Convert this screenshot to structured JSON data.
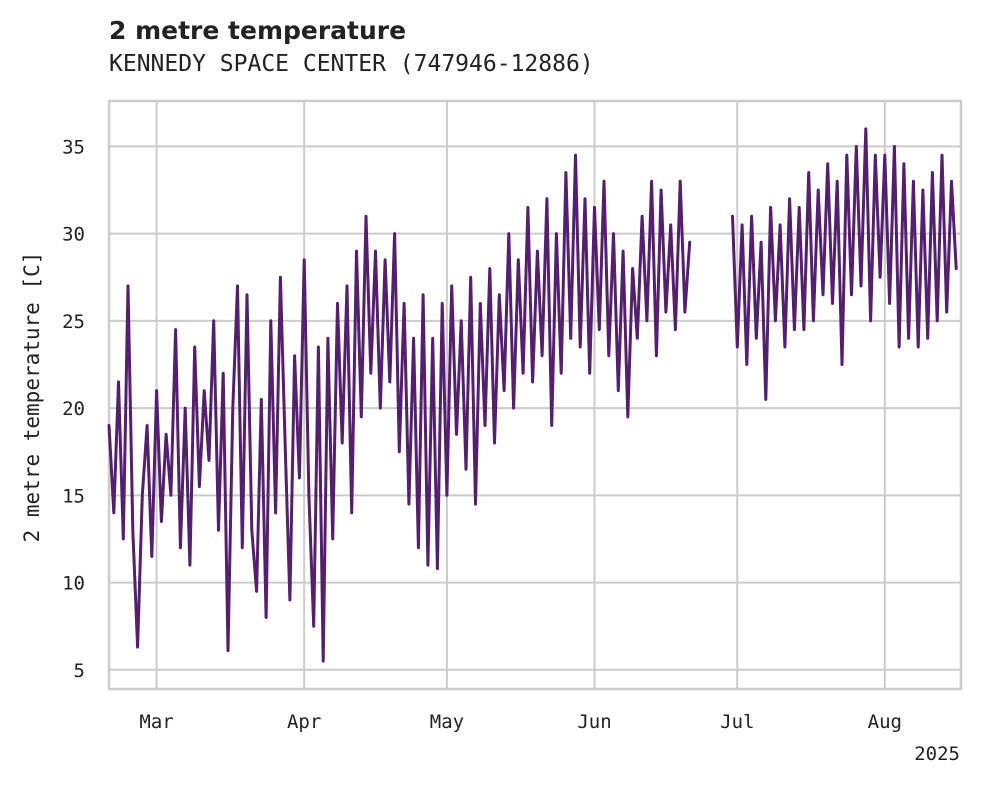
{
  "chart_data": {
    "type": "line",
    "title": "2 metre temperature",
    "subtitle": "KENNEDY SPACE CENTER (747946-12886)",
    "xlabel": "",
    "ylabel": "2 metre temperature [C]",
    "x_range": [
      "2025-02-19",
      "2025-08-17"
    ],
    "ylim": [
      3.9,
      37.6
    ],
    "x_ticks": [
      {
        "date": "2025-03-01",
        "label": "Mar"
      },
      {
        "date": "2025-04-01",
        "label": "Apr"
      },
      {
        "date": "2025-05-01",
        "label": "May"
      },
      {
        "date": "2025-06-01",
        "label": "Jun"
      },
      {
        "date": "2025-07-01",
        "label": "Jul"
      },
      {
        "date": "2025-08-01",
        "label": "Aug"
      }
    ],
    "x_offset_label": "2025",
    "y_ticks": [
      5,
      10,
      15,
      20,
      25,
      30,
      35
    ],
    "grid": true,
    "series": [
      {
        "color": "#541f6e",
        "points": [
          [
            "2025-02-19",
            19.0
          ],
          [
            "2025-02-20",
            14.0
          ],
          [
            "2025-02-21",
            21.5
          ],
          [
            "2025-02-22",
            12.5
          ],
          [
            "2025-02-23",
            27.0
          ],
          [
            "2025-02-24",
            13.0
          ],
          [
            "2025-02-25",
            6.3
          ],
          [
            "2025-02-26",
            15.0
          ],
          [
            "2025-02-27",
            19.0
          ],
          [
            "2025-02-28",
            11.5
          ],
          [
            "2025-03-01",
            21.0
          ],
          [
            "2025-03-02",
            13.5
          ],
          [
            "2025-03-03",
            18.5
          ],
          [
            "2025-03-04",
            15.0
          ],
          [
            "2025-03-05",
            24.5
          ],
          [
            "2025-03-06",
            12.0
          ],
          [
            "2025-03-07",
            20.0
          ],
          [
            "2025-03-08",
            11.0
          ],
          [
            "2025-03-09",
            23.5
          ],
          [
            "2025-03-10",
            15.5
          ],
          [
            "2025-03-11",
            21.0
          ],
          [
            "2025-03-12",
            17.0
          ],
          [
            "2025-03-13",
            25.0
          ],
          [
            "2025-03-14",
            13.0
          ],
          [
            "2025-03-15",
            22.0
          ],
          [
            "2025-03-16",
            6.1
          ],
          [
            "2025-03-17",
            20.0
          ],
          [
            "2025-03-18",
            27.0
          ],
          [
            "2025-03-19",
            12.0
          ],
          [
            "2025-03-20",
            26.5
          ],
          [
            "2025-03-21",
            13.0
          ],
          [
            "2025-03-22",
            9.5
          ],
          [
            "2025-03-23",
            20.5
          ],
          [
            "2025-03-24",
            8.0
          ],
          [
            "2025-03-25",
            25.0
          ],
          [
            "2025-03-26",
            14.0
          ],
          [
            "2025-03-27",
            27.5
          ],
          [
            "2025-03-28",
            18.0
          ],
          [
            "2025-03-29",
            9.0
          ],
          [
            "2025-03-30",
            23.0
          ],
          [
            "2025-03-31",
            16.0
          ],
          [
            "2025-04-01",
            28.5
          ],
          [
            "2025-04-02",
            15.0
          ],
          [
            "2025-04-03",
            7.5
          ],
          [
            "2025-04-04",
            23.5
          ],
          [
            "2025-04-05",
            5.5
          ],
          [
            "2025-04-06",
            24.0
          ],
          [
            "2025-04-07",
            12.5
          ],
          [
            "2025-04-08",
            26.0
          ],
          [
            "2025-04-09",
            18.0
          ],
          [
            "2025-04-10",
            27.0
          ],
          [
            "2025-04-11",
            14.0
          ],
          [
            "2025-04-12",
            29.0
          ],
          [
            "2025-04-13",
            19.5
          ],
          [
            "2025-04-14",
            31.0
          ],
          [
            "2025-04-15",
            22.0
          ],
          [
            "2025-04-16",
            29.0
          ],
          [
            "2025-04-17",
            20.0
          ],
          [
            "2025-04-18",
            28.5
          ],
          [
            "2025-04-19",
            21.5
          ],
          [
            "2025-04-20",
            30.0
          ],
          [
            "2025-04-21",
            17.5
          ],
          [
            "2025-04-22",
            26.0
          ],
          [
            "2025-04-23",
            14.5
          ],
          [
            "2025-04-24",
            24.0
          ],
          [
            "2025-04-25",
            12.0
          ],
          [
            "2025-04-26",
            26.5
          ],
          [
            "2025-04-27",
            11.0
          ],
          [
            "2025-04-28",
            24.0
          ],
          [
            "2025-04-29",
            10.8
          ],
          [
            "2025-04-30",
            26.0
          ],
          [
            "2025-05-01",
            15.0
          ],
          [
            "2025-05-02",
            27.0
          ],
          [
            "2025-05-03",
            18.5
          ],
          [
            "2025-05-04",
            25.0
          ],
          [
            "2025-05-05",
            16.5
          ],
          [
            "2025-05-06",
            27.5
          ],
          [
            "2025-05-07",
            14.5
          ],
          [
            "2025-05-08",
            26.0
          ],
          [
            "2025-05-09",
            19.0
          ],
          [
            "2025-05-10",
            28.0
          ],
          [
            "2025-05-11",
            18.0
          ],
          [
            "2025-05-12",
            26.5
          ],
          [
            "2025-05-13",
            21.0
          ],
          [
            "2025-05-14",
            30.0
          ],
          [
            "2025-05-15",
            20.0
          ],
          [
            "2025-05-16",
            28.5
          ],
          [
            "2025-05-17",
            22.0
          ],
          [
            "2025-05-18",
            31.5
          ],
          [
            "2025-05-19",
            21.5
          ],
          [
            "2025-05-20",
            29.0
          ],
          [
            "2025-05-21",
            23.0
          ],
          [
            "2025-05-22",
            32.0
          ],
          [
            "2025-05-23",
            19.0
          ],
          [
            "2025-05-24",
            30.0
          ],
          [
            "2025-05-25",
            22.0
          ],
          [
            "2025-05-26",
            33.5
          ],
          [
            "2025-05-27",
            24.0
          ],
          [
            "2025-05-28",
            34.5
          ],
          [
            "2025-05-29",
            23.5
          ],
          [
            "2025-05-30",
            32.0
          ],
          [
            "2025-05-31",
            22.0
          ],
          [
            "2025-06-01",
            31.5
          ],
          [
            "2025-06-02",
            24.5
          ],
          [
            "2025-06-03",
            33.0
          ],
          [
            "2025-06-04",
            23.0
          ],
          [
            "2025-06-05",
            30.0
          ],
          [
            "2025-06-06",
            21.0
          ],
          [
            "2025-06-07",
            29.0
          ],
          [
            "2025-06-08",
            19.5
          ],
          [
            "2025-06-09",
            28.0
          ],
          [
            "2025-06-10",
            24.0
          ],
          [
            "2025-06-11",
            31.0
          ],
          [
            "2025-06-12",
            25.0
          ],
          [
            "2025-06-13",
            33.0
          ],
          [
            "2025-06-14",
            23.0
          ],
          [
            "2025-06-15",
            32.5
          ],
          [
            "2025-06-16",
            25.5
          ],
          [
            "2025-06-17",
            30.5
          ],
          [
            "2025-06-18",
            24.5
          ],
          [
            "2025-06-19",
            33.0
          ],
          [
            "2025-06-20",
            25.5
          ],
          [
            "2025-06-21",
            29.5
          ],
          null,
          [
            "2025-06-30",
            31.0
          ],
          [
            "2025-07-01",
            23.5
          ],
          [
            "2025-07-02",
            30.5
          ],
          [
            "2025-07-03",
            22.5
          ],
          [
            "2025-07-04",
            31.0
          ],
          [
            "2025-07-05",
            24.0
          ],
          [
            "2025-07-06",
            29.5
          ],
          [
            "2025-07-07",
            20.5
          ],
          [
            "2025-07-08",
            31.5
          ],
          [
            "2025-07-09",
            25.0
          ],
          [
            "2025-07-10",
            30.5
          ],
          [
            "2025-07-11",
            23.5
          ],
          [
            "2025-07-12",
            32.0
          ],
          [
            "2025-07-13",
            24.5
          ],
          [
            "2025-07-14",
            31.5
          ],
          [
            "2025-07-15",
            24.5
          ],
          [
            "2025-07-16",
            33.5
          ],
          [
            "2025-07-17",
            25.0
          ],
          [
            "2025-07-18",
            32.5
          ],
          [
            "2025-07-19",
            26.5
          ],
          [
            "2025-07-20",
            34.0
          ],
          [
            "2025-07-21",
            26.0
          ],
          [
            "2025-07-22",
            33.0
          ],
          [
            "2025-07-23",
            22.5
          ],
          [
            "2025-07-24",
            34.5
          ],
          [
            "2025-07-25",
            26.5
          ],
          [
            "2025-07-26",
            35.0
          ],
          [
            "2025-07-27",
            27.0
          ],
          [
            "2025-07-28",
            36.0
          ],
          [
            "2025-07-29",
            25.0
          ],
          [
            "2025-07-30",
            34.5
          ],
          [
            "2025-07-31",
            27.5
          ],
          [
            "2025-08-01",
            34.5
          ],
          [
            "2025-08-02",
            26.0
          ],
          [
            "2025-08-03",
            35.0
          ],
          [
            "2025-08-04",
            23.5
          ],
          [
            "2025-08-05",
            34.0
          ],
          [
            "2025-08-06",
            24.0
          ],
          [
            "2025-08-07",
            33.0
          ],
          [
            "2025-08-08",
            23.5
          ],
          [
            "2025-08-09",
            32.5
          ],
          [
            "2025-08-10",
            24.0
          ],
          [
            "2025-08-11",
            33.5
          ],
          [
            "2025-08-12",
            25.0
          ],
          [
            "2025-08-13",
            34.5
          ],
          [
            "2025-08-14",
            25.5
          ],
          [
            "2025-08-15",
            33.0
          ],
          [
            "2025-08-16",
            28.0
          ]
        ]
      }
    ]
  }
}
